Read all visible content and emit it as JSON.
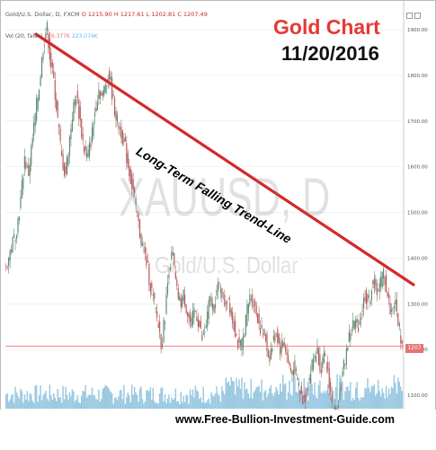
{
  "header": {
    "symbol_line": "Gold/U.S. Dollar, D, FXCM",
    "ohlc_line": "O 1215.90  H 1217.61  L 1202.81  C 1207.49",
    "volume_label": "Vol (20, false)",
    "volume_value_1": "226.377K",
    "volume_value_2": "223.074K"
  },
  "title": {
    "line1": "Gold Chart",
    "line2": "11/20/2016",
    "color": "#e53935"
  },
  "trend_label": "Long-Term Falling Trend-Line",
  "watermark": {
    "symbol": "XAUUSD, D",
    "pair": "Gold/U.S. Dollar"
  },
  "price_badge": "1207",
  "footer": {
    "url": "www.Free-Bullion-Investment-Guide.com"
  },
  "colors": {
    "candle_up": "#5b8a72",
    "candle_down": "#b55a5a",
    "volume": "#8fc3de",
    "trendline": "#d62828",
    "price_line": "#e57373"
  },
  "chart_data": {
    "type": "line",
    "title": "Gold Chart",
    "subtitle": "11/20/2016",
    "ylim": [
      1050,
      1950
    ],
    "yticks": [
      "1900.00",
      "1800.00",
      "1700.00",
      "1600.00",
      "1500.00",
      "1400.00",
      "1300.00",
      "1200.00",
      "1100.00"
    ],
    "last_price": 1207.49,
    "series": [
      {
        "values": [
          1380,
          1410,
          1440,
          1470,
          1530,
          1620,
          1580,
          1650,
          1720,
          1780,
          1860,
          1910,
          1830,
          1780,
          1700,
          1620,
          1580,
          1650,
          1720,
          1760,
          1700,
          1640,
          1620,
          1660,
          1720,
          1770,
          1750,
          1790,
          1800,
          1740,
          1700,
          1680,
          1650,
          1600,
          1560,
          1520,
          1460,
          1420,
          1390,
          1340,
          1300,
          1260,
          1210,
          1280,
          1380,
          1410,
          1330,
          1300,
          1320,
          1280,
          1250,
          1290,
          1260,
          1220,
          1250,
          1310,
          1290,
          1330,
          1340,
          1300,
          1320,
          1270,
          1240,
          1200,
          1220,
          1280,
          1320,
          1300,
          1270,
          1240,
          1230,
          1180,
          1210,
          1240,
          1200,
          1220,
          1180,
          1150,
          1160,
          1120,
          1090,
          1100,
          1140,
          1180,
          1200,
          1160,
          1180,
          1150,
          1080,
          1060,
          1100,
          1150,
          1200,
          1240,
          1260,
          1250,
          1280,
          1320,
          1300,
          1350,
          1330,
          1340,
          1370,
          1320,
          1280,
          1307,
          1260,
          1207
        ]
      }
    ]
  }
}
